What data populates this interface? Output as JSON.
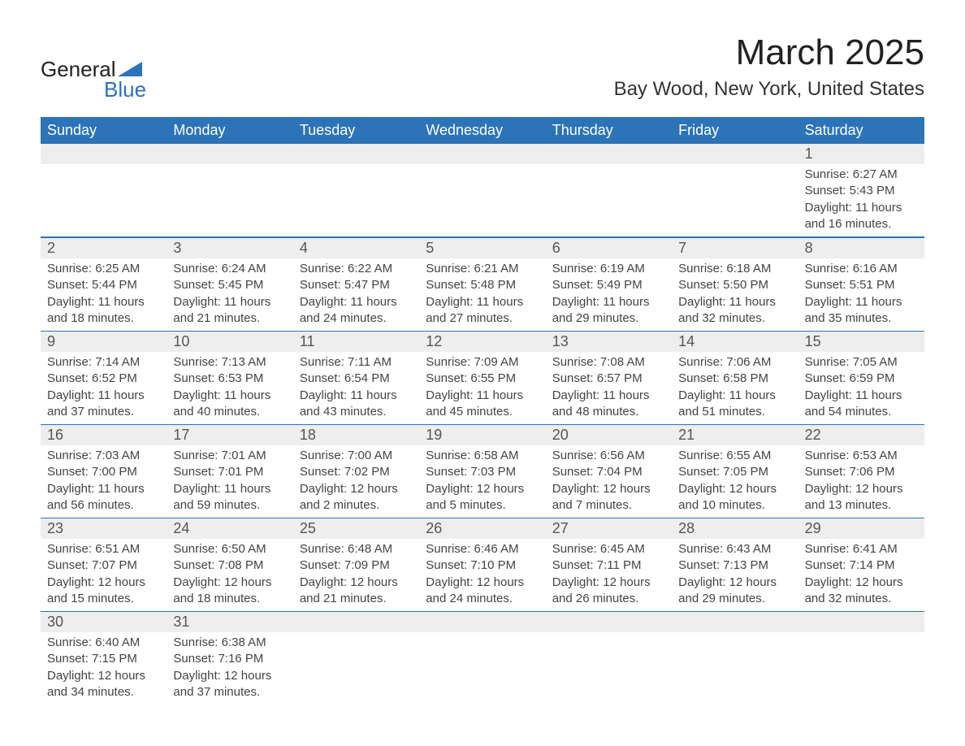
{
  "logo": {
    "text_top": "General",
    "text_bottom": "Blue",
    "shape_color": "#2d73b8"
  },
  "title": {
    "month": "March 2025",
    "location": "Bay Wood, New York, United States"
  },
  "colors": {
    "header_bg": "#2d73b8",
    "header_text": "#ffffff",
    "strip_bg": "#eeeeee",
    "body_bg": "#ffffff",
    "text": "#333333",
    "row_border": "#2d73b8"
  },
  "typography": {
    "title_fontsize": 44,
    "location_fontsize": 24,
    "dow_fontsize": 18,
    "daynum_fontsize": 18,
    "body_fontsize": 15
  },
  "days_of_week": [
    "Sunday",
    "Monday",
    "Tuesday",
    "Wednesday",
    "Thursday",
    "Friday",
    "Saturday"
  ],
  "weeks": [
    [
      null,
      null,
      null,
      null,
      null,
      null,
      {
        "n": "1",
        "sunrise": "Sunrise: 6:27 AM",
        "sunset": "Sunset: 5:43 PM",
        "daylight": "Daylight: 11 hours and 16 minutes."
      }
    ],
    [
      {
        "n": "2",
        "sunrise": "Sunrise: 6:25 AM",
        "sunset": "Sunset: 5:44 PM",
        "daylight": "Daylight: 11 hours and 18 minutes."
      },
      {
        "n": "3",
        "sunrise": "Sunrise: 6:24 AM",
        "sunset": "Sunset: 5:45 PM",
        "daylight": "Daylight: 11 hours and 21 minutes."
      },
      {
        "n": "4",
        "sunrise": "Sunrise: 6:22 AM",
        "sunset": "Sunset: 5:47 PM",
        "daylight": "Daylight: 11 hours and 24 minutes."
      },
      {
        "n": "5",
        "sunrise": "Sunrise: 6:21 AM",
        "sunset": "Sunset: 5:48 PM",
        "daylight": "Daylight: 11 hours and 27 minutes."
      },
      {
        "n": "6",
        "sunrise": "Sunrise: 6:19 AM",
        "sunset": "Sunset: 5:49 PM",
        "daylight": "Daylight: 11 hours and 29 minutes."
      },
      {
        "n": "7",
        "sunrise": "Sunrise: 6:18 AM",
        "sunset": "Sunset: 5:50 PM",
        "daylight": "Daylight: 11 hours and 32 minutes."
      },
      {
        "n": "8",
        "sunrise": "Sunrise: 6:16 AM",
        "sunset": "Sunset: 5:51 PM",
        "daylight": "Daylight: 11 hours and 35 minutes."
      }
    ],
    [
      {
        "n": "9",
        "sunrise": "Sunrise: 7:14 AM",
        "sunset": "Sunset: 6:52 PM",
        "daylight": "Daylight: 11 hours and 37 minutes."
      },
      {
        "n": "10",
        "sunrise": "Sunrise: 7:13 AM",
        "sunset": "Sunset: 6:53 PM",
        "daylight": "Daylight: 11 hours and 40 minutes."
      },
      {
        "n": "11",
        "sunrise": "Sunrise: 7:11 AM",
        "sunset": "Sunset: 6:54 PM",
        "daylight": "Daylight: 11 hours and 43 minutes."
      },
      {
        "n": "12",
        "sunrise": "Sunrise: 7:09 AM",
        "sunset": "Sunset: 6:55 PM",
        "daylight": "Daylight: 11 hours and 45 minutes."
      },
      {
        "n": "13",
        "sunrise": "Sunrise: 7:08 AM",
        "sunset": "Sunset: 6:57 PM",
        "daylight": "Daylight: 11 hours and 48 minutes."
      },
      {
        "n": "14",
        "sunrise": "Sunrise: 7:06 AM",
        "sunset": "Sunset: 6:58 PM",
        "daylight": "Daylight: 11 hours and 51 minutes."
      },
      {
        "n": "15",
        "sunrise": "Sunrise: 7:05 AM",
        "sunset": "Sunset: 6:59 PM",
        "daylight": "Daylight: 11 hours and 54 minutes."
      }
    ],
    [
      {
        "n": "16",
        "sunrise": "Sunrise: 7:03 AM",
        "sunset": "Sunset: 7:00 PM",
        "daylight": "Daylight: 11 hours and 56 minutes."
      },
      {
        "n": "17",
        "sunrise": "Sunrise: 7:01 AM",
        "sunset": "Sunset: 7:01 PM",
        "daylight": "Daylight: 11 hours and 59 minutes."
      },
      {
        "n": "18",
        "sunrise": "Sunrise: 7:00 AM",
        "sunset": "Sunset: 7:02 PM",
        "daylight": "Daylight: 12 hours and 2 minutes."
      },
      {
        "n": "19",
        "sunrise": "Sunrise: 6:58 AM",
        "sunset": "Sunset: 7:03 PM",
        "daylight": "Daylight: 12 hours and 5 minutes."
      },
      {
        "n": "20",
        "sunrise": "Sunrise: 6:56 AM",
        "sunset": "Sunset: 7:04 PM",
        "daylight": "Daylight: 12 hours and 7 minutes."
      },
      {
        "n": "21",
        "sunrise": "Sunrise: 6:55 AM",
        "sunset": "Sunset: 7:05 PM",
        "daylight": "Daylight: 12 hours and 10 minutes."
      },
      {
        "n": "22",
        "sunrise": "Sunrise: 6:53 AM",
        "sunset": "Sunset: 7:06 PM",
        "daylight": "Daylight: 12 hours and 13 minutes."
      }
    ],
    [
      {
        "n": "23",
        "sunrise": "Sunrise: 6:51 AM",
        "sunset": "Sunset: 7:07 PM",
        "daylight": "Daylight: 12 hours and 15 minutes."
      },
      {
        "n": "24",
        "sunrise": "Sunrise: 6:50 AM",
        "sunset": "Sunset: 7:08 PM",
        "daylight": "Daylight: 12 hours and 18 minutes."
      },
      {
        "n": "25",
        "sunrise": "Sunrise: 6:48 AM",
        "sunset": "Sunset: 7:09 PM",
        "daylight": "Daylight: 12 hours and 21 minutes."
      },
      {
        "n": "26",
        "sunrise": "Sunrise: 6:46 AM",
        "sunset": "Sunset: 7:10 PM",
        "daylight": "Daylight: 12 hours and 24 minutes."
      },
      {
        "n": "27",
        "sunrise": "Sunrise: 6:45 AM",
        "sunset": "Sunset: 7:11 PM",
        "daylight": "Daylight: 12 hours and 26 minutes."
      },
      {
        "n": "28",
        "sunrise": "Sunrise: 6:43 AM",
        "sunset": "Sunset: 7:13 PM",
        "daylight": "Daylight: 12 hours and 29 minutes."
      },
      {
        "n": "29",
        "sunrise": "Sunrise: 6:41 AM",
        "sunset": "Sunset: 7:14 PM",
        "daylight": "Daylight: 12 hours and 32 minutes."
      }
    ],
    [
      {
        "n": "30",
        "sunrise": "Sunrise: 6:40 AM",
        "sunset": "Sunset: 7:15 PM",
        "daylight": "Daylight: 12 hours and 34 minutes."
      },
      {
        "n": "31",
        "sunrise": "Sunrise: 6:38 AM",
        "sunset": "Sunset: 7:16 PM",
        "daylight": "Daylight: 12 hours and 37 minutes."
      },
      null,
      null,
      null,
      null,
      null
    ]
  ]
}
